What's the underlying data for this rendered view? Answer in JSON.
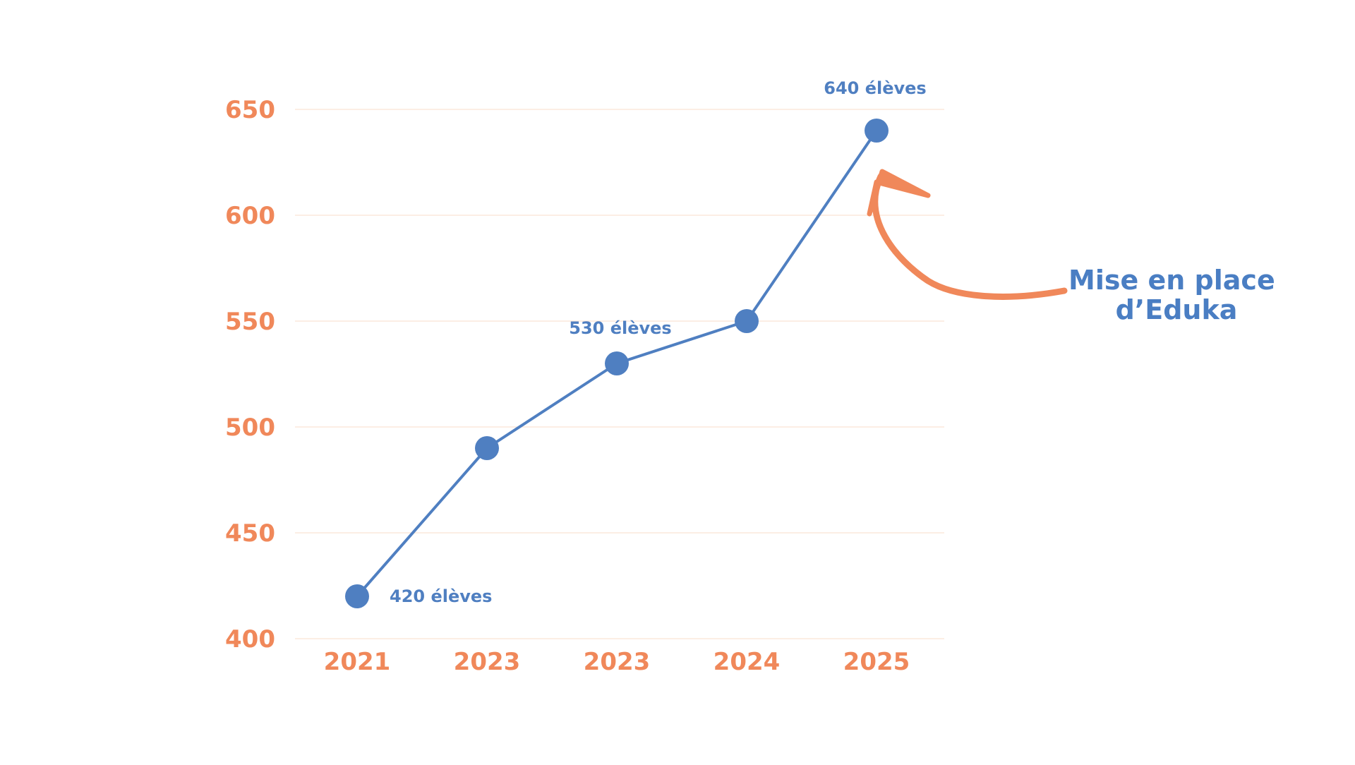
{
  "chart_data": {
    "type": "line",
    "categories": [
      "2021",
      "2023",
      "2023",
      "2024",
      "2025"
    ],
    "values": [
      420,
      490,
      530,
      550,
      640
    ],
    "ylim": [
      400,
      650
    ],
    "yticks": [
      400,
      450,
      500,
      550,
      600,
      650
    ],
    "grid": true,
    "data_labels": [
      {
        "index": 0,
        "text": "420 élèves"
      },
      {
        "index": 2,
        "text": "530 élèves"
      },
      {
        "index": 4,
        "text": "640 élèves"
      }
    ],
    "annotation": {
      "lines": [
        "Mise en place",
        "d’Eduka"
      ],
      "target_index": 4
    }
  },
  "colors": {
    "line": "#4f7fc1",
    "tick_text": "#f0885a",
    "grid": "#fbe8dc",
    "arrow": "#f0885a",
    "annotation_text": "#4a7ec3"
  }
}
